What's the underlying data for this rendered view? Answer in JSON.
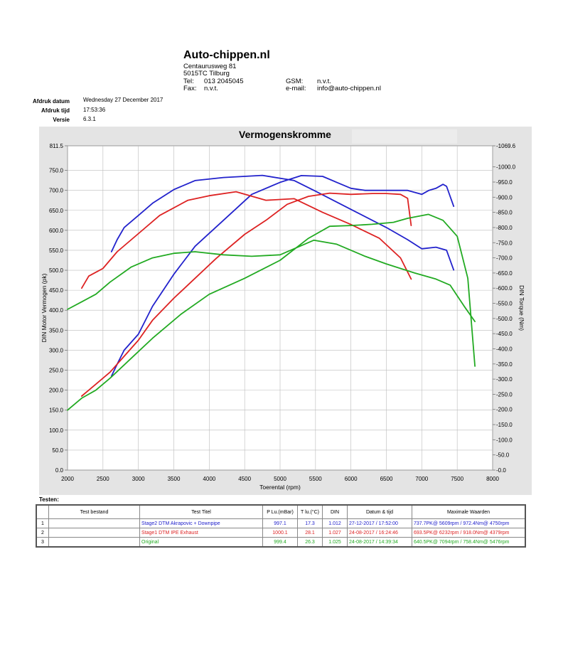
{
  "header": {
    "company": "Auto-chippen.nl",
    "address1": "Centaurusweg 81",
    "address2": "5015TC Tilburg",
    "tel_label": "Tel:",
    "tel": "013 2045045",
    "fax_label": "Fax:",
    "fax": "n.v.t.",
    "gsm_label": "GSM:",
    "gsm": "n.v.t.",
    "email_label": "e-mail:",
    "email": "info@auto-chippen.nl"
  },
  "meta": {
    "date_label": "Afdruk datum",
    "date": "Wednesday 27 December 2017",
    "time_label": "Afdruk tijd",
    "time": "17:53:36",
    "version_label": "Versie",
    "version": "6.3.1"
  },
  "chart_data": {
    "type": "line",
    "title": "Vermogenskromme",
    "xlabel": "Toerental (rpm)",
    "ylabel": "DIN Motor Vermogen (pk)",
    "y2label": "DIN Torque (Nm)",
    "xlim": [
      2000,
      8000
    ],
    "ylim": [
      0,
      811.5
    ],
    "y2lim": [
      0,
      1069.6
    ],
    "x_ticks": [
      "2000",
      "2500",
      "3000",
      "3500",
      "4000",
      "4500",
      "5000",
      "5500",
      "6000",
      "6500",
      "7000",
      "7500",
      "8000"
    ],
    "y_ticks": [
      "0.0",
      "50.0",
      "100.0",
      "150.0",
      "200.0",
      "250.0",
      "300.0",
      "350.0",
      "400.0",
      "450.0",
      "500.0",
      "550.0",
      "600.0",
      "650.0",
      "700.0",
      "750.0",
      "811.5"
    ],
    "y2_ticks": [
      "0.0",
      "50.0",
      "100.0",
      "150.0",
      "200.0",
      "250.0",
      "300.0",
      "350.0",
      "400.0",
      "450.0",
      "500.0",
      "550.0",
      "600.0",
      "650.0",
      "700.0",
      "750.0",
      "800.0",
      "850.0",
      "900.0",
      "950.0",
      "1000.0",
      "1069.6"
    ],
    "grid": true,
    "series": [
      {
        "name": "Stage2 DTM Akrapovic + Downpipe",
        "color": "#2222cc",
        "kind": "power",
        "axis": "left",
        "x": [
          2620,
          2700,
          2800,
          3000,
          3200,
          3500,
          3800,
          4200,
          4600,
          5000,
          5300,
          5600,
          5800,
          6000,
          6200,
          6500,
          6800,
          7000,
          7100,
          7200,
          7300,
          7350,
          7450
        ],
        "y": [
          235,
          265,
          300,
          340,
          410,
          490,
          560,
          625,
          690,
          720,
          737,
          735,
          720,
          705,
          700,
          700,
          700,
          690,
          700,
          705,
          715,
          710,
          660
        ]
      },
      {
        "name": "Stage2 DTM Akrapovic + Downpipe",
        "color": "#2222cc",
        "kind": "torque",
        "axis": "right",
        "x": [
          2620,
          2700,
          2800,
          3000,
          3200,
          3500,
          3800,
          4200,
          4750,
          5200,
          5500,
          6000,
          6500,
          6800,
          7000,
          7200,
          7350,
          7450
        ],
        "y": [
          720,
          760,
          800,
          840,
          880,
          925,
          955,
          965,
          972,
          955,
          920,
          860,
          800,
          760,
          730,
          735,
          725,
          660
        ]
      },
      {
        "name": "Stage1 DTM IPE Exhaust",
        "color": "#dd2222",
        "kind": "power",
        "axis": "left",
        "x": [
          2200,
          2400,
          2600,
          2800,
          3000,
          3200,
          3500,
          3800,
          4100,
          4500,
          4800,
          5100,
          5400,
          5700,
          6000,
          6300,
          6500,
          6700,
          6800,
          6850
        ],
        "y": [
          185,
          215,
          245,
          285,
          325,
          375,
          430,
          480,
          530,
          590,
          625,
          665,
          685,
          693,
          690,
          692,
          692,
          690,
          680,
          612
        ]
      },
      {
        "name": "Stage1 DTM IPE Exhaust",
        "color": "#dd2222",
        "kind": "torque",
        "axis": "right",
        "x": [
          2200,
          2300,
          2500,
          2700,
          3000,
          3300,
          3700,
          4000,
          4379,
          4800,
          5200,
          5600,
          6000,
          6400,
          6700,
          6850
        ],
        "y": [
          600,
          640,
          665,
          720,
          780,
          840,
          890,
          905,
          918,
          890,
          895,
          850,
          810,
          765,
          700,
          630
        ]
      },
      {
        "name": "Original",
        "color": "#22aa22",
        "kind": "power",
        "axis": "left",
        "x": [
          2000,
          2200,
          2400,
          2600,
          2900,
          3200,
          3600,
          4000,
          4500,
          5000,
          5400,
          5700,
          6000,
          6300,
          6600,
          6800,
          7094,
          7300,
          7500,
          7650,
          7750
        ],
        "y": [
          150,
          180,
          200,
          230,
          280,
          330,
          390,
          440,
          480,
          525,
          580,
          610,
          612,
          615,
          620,
          630,
          640,
          625,
          585,
          480,
          260
        ]
      },
      {
        "name": "Original",
        "color": "#22aa22",
        "kind": "torque",
        "axis": "right",
        "x": [
          2000,
          2200,
          2400,
          2600,
          2900,
          3200,
          3500,
          3800,
          4200,
          4600,
          5000,
          5476,
          5800,
          6200,
          6500,
          6900,
          7200,
          7400,
          7600,
          7750
        ],
        "y": [
          530,
          555,
          580,
          620,
          670,
          700,
          715,
          720,
          710,
          705,
          710,
          758,
          745,
          705,
          680,
          650,
          630,
          610,
          540,
          490
        ]
      }
    ]
  },
  "testen": {
    "label": "Testen:",
    "headers": [
      "",
      "Test bestand",
      "Test Titel",
      "P Lu.(mBar)",
      "T lu.(°C)",
      "DIN",
      "Datum & tijd",
      "Maximale Waarden"
    ],
    "rows": [
      {
        "nr": "1",
        "file": "",
        "title": "Stage2 DTM Akrapovic + Downpipe",
        "p": "997.1",
        "t": "17.3",
        "din": "1.012",
        "date": "27-12-2017 / 17:52:00",
        "max": "737.7PK@ 5609rpm / 972.4Nm@ 4750rpm",
        "color": "#2222cc"
      },
      {
        "nr": "2",
        "file": "",
        "title": "Stage1 DTM IPE Exhaust",
        "p": "1000.1",
        "t": "28.1",
        "din": "1.027",
        "date": "24-08-2017 / 16:24:46",
        "max": "693.5PK@ 6232rpm / 918.0Nm@ 4379rpm",
        "color": "#dd2222"
      },
      {
        "nr": "3",
        "file": "",
        "title": "Original",
        "p": "999.4",
        "t": "26.3",
        "din": "1.025",
        "date": "24-08-2017 / 14:39:34",
        "max": "640.5PK@ 7094rpm / 758.4Nm@ 5476rpm",
        "color": "#22aa22"
      }
    ]
  }
}
